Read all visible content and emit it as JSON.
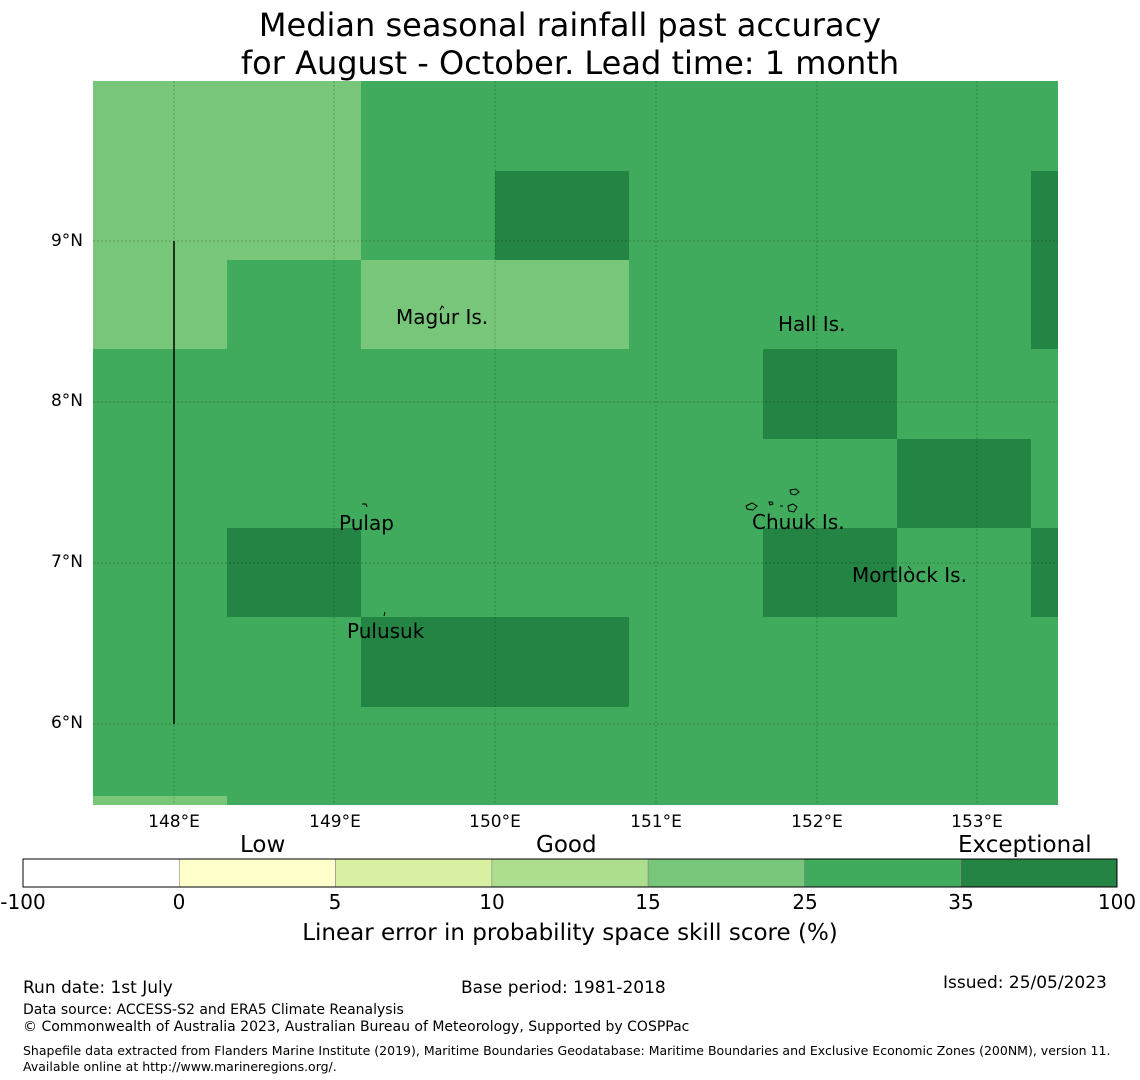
{
  "title": {
    "line1": "Median seasonal rainfall past accuracy",
    "line2": "for August - October. Lead time: 1 month"
  },
  "map": {
    "lat_labels": [
      "9°N",
      "8°N",
      "7°N",
      "6°N"
    ],
    "lon_labels": [
      "148°E",
      "149°E",
      "150°E",
      "151°E",
      "152°E",
      "153°E"
    ],
    "lon_range": [
      147.5,
      153.5
    ],
    "lat_range": [
      5.5,
      10.0
    ],
    "places": [
      {
        "name": "Magur Is.",
        "lon": 149.62,
        "lat": 8.55
      },
      {
        "name": "Hall Is.",
        "lon": 151.95,
        "lat": 8.51
      },
      {
        "name": "Pulap",
        "lon": 149.2,
        "lat": 7.25
      },
      {
        "name": "Chuuk Is.",
        "lon": 151.85,
        "lat": 7.35
      },
      {
        "name": "Mortlock Is.",
        "lon": 152.6,
        "lat": 6.95
      },
      {
        "name": "Pulusuk",
        "lon": 149.3,
        "lat": 6.65
      }
    ],
    "colors": {
      "c15": "#78c679",
      "c25": "#41ab5d",
      "c35": "#238443"
    }
  },
  "colorbar": {
    "categories": [
      "Low",
      "Good",
      "Exceptional"
    ],
    "ticks": [
      "-100",
      "0",
      "5",
      "10",
      "15",
      "25",
      "35",
      "100"
    ],
    "colors": [
      "#ffffff",
      "#ffffcc",
      "#d9f0a3",
      "#addd8e",
      "#78c679",
      "#41ab5d",
      "#238443"
    ],
    "label": "Linear error in probability space skill score (%)"
  },
  "footer": {
    "run_date": "Run date: 1st July",
    "base_period": "Base period: 1981-2018",
    "issued": "Issued: 25/05/2023",
    "data_source": "Data source: ACCESS-S2 and ERA5 Climate Reanalysis",
    "copyright": "© Commonwealth of Australia 2023, Australian Bureau of Meteorology, Supported by COSPPac",
    "shapefile": "Shapefile data extracted from Flanders Marine Institute (2019), Maritime Boundaries Geodatabase: Maritime Boundaries and Exclusive Economic Zones (200NM), version 11. Available online at http://www.marineregions.org/."
  }
}
